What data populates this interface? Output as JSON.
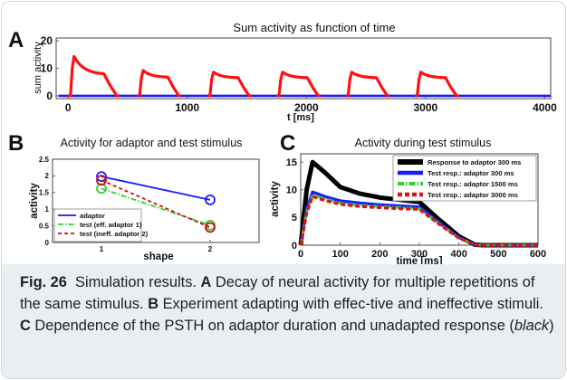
{
  "caption": {
    "fig_label": "Fig. 26",
    "intro": "Simulation results.",
    "a_letter": "A",
    "a_text": "Decay of neural activity for multiple repetitions of the same stimulus.",
    "b_letter": "B",
    "b_text": "Experiment adapting with effec-tive and ineffective stimuli.",
    "c_letter": "C",
    "c_text": "Dependence of the PSTH on adaptor duration and unadapted response (",
    "c_italic": "black",
    "c_end": ")"
  },
  "chart_data": [
    {
      "panel": "A",
      "type": "line",
      "title": "Sum activity as function of time",
      "xlabel": "t [ms]",
      "ylabel": "sum activity",
      "xlim": [
        -100,
        4050
      ],
      "ylim": [
        -1,
        21
      ],
      "xticks": [
        0,
        1000,
        2000,
        3000,
        4000
      ],
      "yticks": [
        0,
        10,
        20
      ],
      "series": [
        {
          "color": "#ff1010",
          "pulses": [
            {
              "start": 20,
              "peak": 14.3,
              "plateau": 8.0,
              "end": 410
            },
            {
              "start": 600,
              "peak": 9.2,
              "plateau": 6.8,
              "end": 930
            },
            {
              "start": 1190,
              "peak": 8.6,
              "plateau": 6.6,
              "end": 1520
            },
            {
              "start": 1770,
              "peak": 8.6,
              "plateau": 6.6,
              "end": 2100
            },
            {
              "start": 2350,
              "peak": 8.6,
              "plateau": 6.6,
              "end": 2680
            },
            {
              "start": 2930,
              "peak": 8.6,
              "plateau": 6.6,
              "end": 3260
            }
          ]
        },
        {
          "color": "#1a1aff",
          "x": [
            -80,
            4050
          ],
          "y": [
            0,
            0
          ]
        }
      ]
    },
    {
      "panel": "B",
      "type": "line",
      "title": "Activity for adaptor and test stimulus",
      "xlabel": "shape",
      "ylabel": "activity",
      "xlim": [
        0.55,
        2.45
      ],
      "ylim": [
        0.0,
        2.5
      ],
      "xticks": [
        1,
        2
      ],
      "yticks": [
        0,
        0.5,
        1,
        1.5,
        2,
        2.5
      ],
      "legend_position": "bottom-left",
      "series": [
        {
          "name": "adaptor",
          "color": "#1a1aff",
          "dash": "",
          "x": [
            1,
            2
          ],
          "y": [
            1.98,
            1.28
          ]
        },
        {
          "name": "test (eff. adaptor 1)",
          "color": "#33cc33",
          "dash": "6,2,1.5,2",
          "x": [
            1,
            2
          ],
          "y": [
            1.62,
            0.52
          ]
        },
        {
          "name": "test (ineff. adaptor 2)",
          "color": "#cc1111",
          "dash": "4,3",
          "x": [
            1,
            2
          ],
          "y": [
            1.87,
            0.45
          ]
        }
      ]
    },
    {
      "panel": "C",
      "type": "line",
      "title": "Activity during test stimulus",
      "xlabel": "time [ms]",
      "ylabel": "activity",
      "xlim": [
        0,
        600
      ],
      "ylim": [
        0,
        16.5
      ],
      "xticks": [
        0,
        100,
        200,
        300,
        400,
        500,
        600
      ],
      "yticks": [
        0,
        5,
        10,
        15
      ],
      "legend_position": "top-right",
      "series": [
        {
          "name": "Response to adaptor 300 ms",
          "color": "#000000",
          "dash": "",
          "x": [
            0,
            15,
            30,
            60,
            100,
            150,
            200,
            250,
            300,
            350,
            400,
            440,
            460,
            600
          ],
          "y": [
            0,
            10,
            15,
            13.2,
            10.5,
            9.3,
            8.6,
            8.2,
            7.8,
            4.6,
            1.6,
            0.1,
            0,
            0
          ]
        },
        {
          "name": "Test resp.: adaptor 300 ms",
          "color": "#1a1aff",
          "dash": "",
          "x": [
            0,
            15,
            30,
            60,
            100,
            150,
            200,
            250,
            300,
            350,
            400,
            440,
            460,
            600
          ],
          "y": [
            0,
            6.5,
            9.6,
            8.8,
            8.0,
            7.6,
            7.3,
            7.1,
            6.9,
            4.1,
            1.4,
            0.1,
            0,
            0
          ]
        },
        {
          "name": "Test resp.: adaptor 1500 ms",
          "color": "#33cc33",
          "dash": "7,2,1.5,2",
          "x": [
            0,
            15,
            30,
            60,
            100,
            150,
            200,
            250,
            300,
            350,
            400,
            440,
            460,
            600
          ],
          "y": [
            0,
            6.0,
            9.1,
            8.4,
            7.6,
            7.2,
            7.0,
            6.8,
            6.6,
            3.9,
            1.3,
            0.1,
            0,
            0
          ]
        },
        {
          "name": "Test resp.: adaptor 3000 ms",
          "color": "#dd1111",
          "dash": "5,3",
          "x": [
            0,
            15,
            30,
            60,
            100,
            150,
            200,
            250,
            300,
            350,
            400,
            440,
            460,
            600
          ],
          "y": [
            0,
            5.8,
            8.8,
            8.1,
            7.4,
            7.0,
            6.8,
            6.6,
            6.5,
            3.8,
            1.3,
            0.1,
            0,
            0
          ]
        }
      ]
    }
  ]
}
